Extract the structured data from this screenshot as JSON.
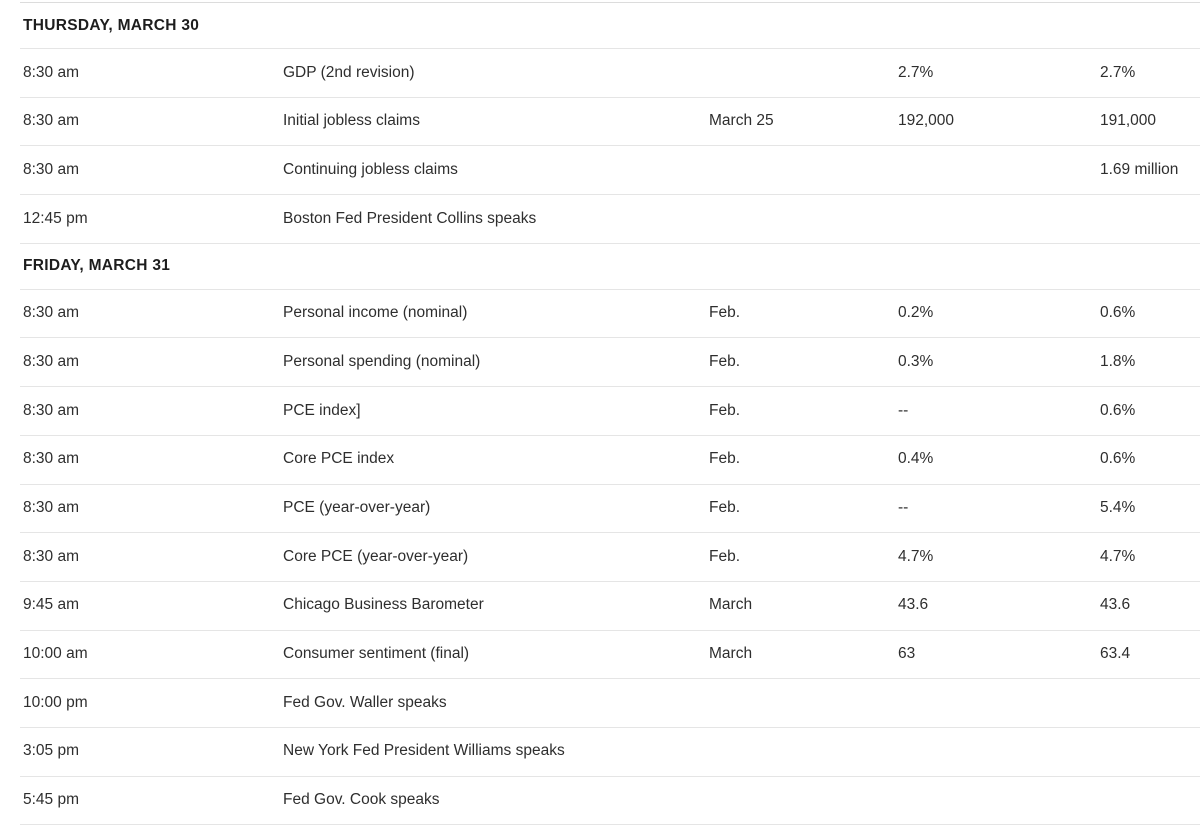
{
  "colors": {
    "background": "#ffffff",
    "divider": "#e5e5e5",
    "top_hairline": "#dcdcdc",
    "row_text": "#2e2e2e",
    "section_header_text": "#1d1d1d"
  },
  "table": {
    "columns": [
      "time",
      "event",
      "period",
      "actual",
      "previous"
    ],
    "sections": [
      {
        "header": "THURSDAY, MARCH 30",
        "rows": [
          {
            "time": "8:30 am",
            "event": "GDP (2nd revision)",
            "period": "",
            "actual": "2.7%",
            "previous": "2.7%"
          },
          {
            "time": "8:30 am",
            "event": "Initial jobless claims",
            "period": "March 25",
            "actual": "192,000",
            "previous": "191,000"
          },
          {
            "time": "8:30 am",
            "event": "Continuing jobless claims",
            "period": "",
            "actual": "",
            "previous": "1.69 million"
          },
          {
            "time": "12:45 pm",
            "event": "Boston Fed President Collins speaks",
            "period": "",
            "actual": "",
            "previous": ""
          }
        ]
      },
      {
        "header": "FRIDAY, MARCH 31",
        "rows": [
          {
            "time": "8:30 am",
            "event": "Personal income (nominal)",
            "period": "Feb.",
            "actual": "0.2%",
            "previous": "0.6%"
          },
          {
            "time": "8:30 am",
            "event": "Personal spending (nominal)",
            "period": "Feb.",
            "actual": "0.3%",
            "previous": "1.8%"
          },
          {
            "time": "8:30 am",
            "event": "PCE index]",
            "period": "Feb.",
            "actual": "--",
            "previous": "0.6%"
          },
          {
            "time": "8:30 am",
            "event": "Core PCE index",
            "period": "Feb.",
            "actual": "0.4%",
            "previous": "0.6%"
          },
          {
            "time": "8:30 am",
            "event": "PCE (year-over-year)",
            "period": "Feb.",
            "actual": "--",
            "previous": "5.4%"
          },
          {
            "time": "8:30 am",
            "event": "Core PCE (year-over-year)",
            "period": "Feb.",
            "actual": "4.7%",
            "previous": "4.7%"
          },
          {
            "time": "9:45 am",
            "event": "Chicago Business Barometer",
            "period": "March",
            "actual": "43.6",
            "previous": "43.6"
          },
          {
            "time": "10:00 am",
            "event": "Consumer sentiment (final)",
            "period": "March",
            "actual": "63",
            "previous": "63.4"
          },
          {
            "time": "10:00 pm",
            "event": "Fed Gov. Waller speaks",
            "period": "",
            "actual": "",
            "previous": ""
          },
          {
            "time": "3:05 pm",
            "event": "New York Fed President Williams speaks",
            "period": "",
            "actual": "",
            "previous": ""
          },
          {
            "time": "5:45 pm",
            "event": "Fed Gov. Cook speaks",
            "period": "",
            "actual": "",
            "previous": ""
          }
        ]
      }
    ]
  }
}
